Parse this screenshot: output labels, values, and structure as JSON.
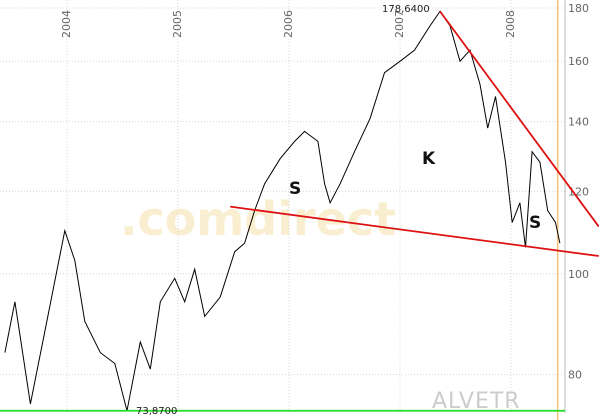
{
  "chart_data": {
    "type": "line",
    "log_scale": true,
    "grid": true,
    "symbol": "ALVETR",
    "watermark": ".comdirect",
    "xlim": [
      2003.396,
      2008.486
    ],
    "xticks": [
      2004,
      2005,
      2006,
      2007,
      2008
    ],
    "ylim": [
      73.5,
      183.2
    ],
    "yticks": [
      80,
      100,
      120,
      140,
      160,
      180
    ],
    "series": [
      {
        "color": "#000000",
        "x": [
          2003.44,
          2003.53,
          2003.67,
          2003.8,
          2003.98,
          2004.07,
          2004.16,
          2004.3,
          2004.43,
          2004.54,
          2004.66,
          2004.75,
          2004.84,
          2004.97,
          2005.06,
          2005.15,
          2005.24,
          2005.38,
          2005.51,
          2005.6,
          2005.69,
          2005.78,
          2005.92,
          2006.05,
          2006.14,
          2006.26,
          2006.32,
          2006.37,
          2006.46,
          2006.59,
          2006.73,
          2006.86,
          2007.0,
          2007.13,
          2007.27,
          2007.36,
          2007.45,
          2007.54,
          2007.63,
          2007.72,
          2007.79,
          2007.86,
          2007.95,
          2008.01,
          2008.08,
          2008.13,
          2008.19,
          2008.26,
          2008.33,
          2008.4,
          2008.44
        ],
        "values": [
          84,
          94,
          75,
          88,
          110,
          103,
          90,
          84,
          82,
          73.87,
          86,
          81,
          94,
          99,
          94,
          101,
          91,
          95,
          105,
          107,
          115,
          122,
          129,
          134,
          137,
          134,
          122,
          117,
          122,
          131,
          141,
          156,
          160,
          164,
          173,
          178.64,
          173,
          160,
          164,
          152,
          138,
          148,
          128,
          112,
          117,
          106,
          131,
          128,
          115,
          112,
          107
        ]
      }
    ],
    "trendlines": [
      {
        "color": "#dd1111",
        "x": [
          2005.47,
          2008.79
        ],
        "y": [
          116,
          104
        ]
      },
      {
        "color": "#dd1111",
        "x": [
          2007.36,
          2008.79
        ],
        "y": [
          178.64,
          111
        ]
      },
      {
        "color": "#22dd22",
        "x": [
          2003.396,
          2008.486
        ],
        "y": [
          73.87,
          73.87
        ]
      }
    ],
    "current_marker": {
      "color": "#f5c27a",
      "x": 2008.42
    },
    "annotations": [
      "178,6400",
      "73,8700",
      "S",
      "K",
      "S"
    ]
  }
}
